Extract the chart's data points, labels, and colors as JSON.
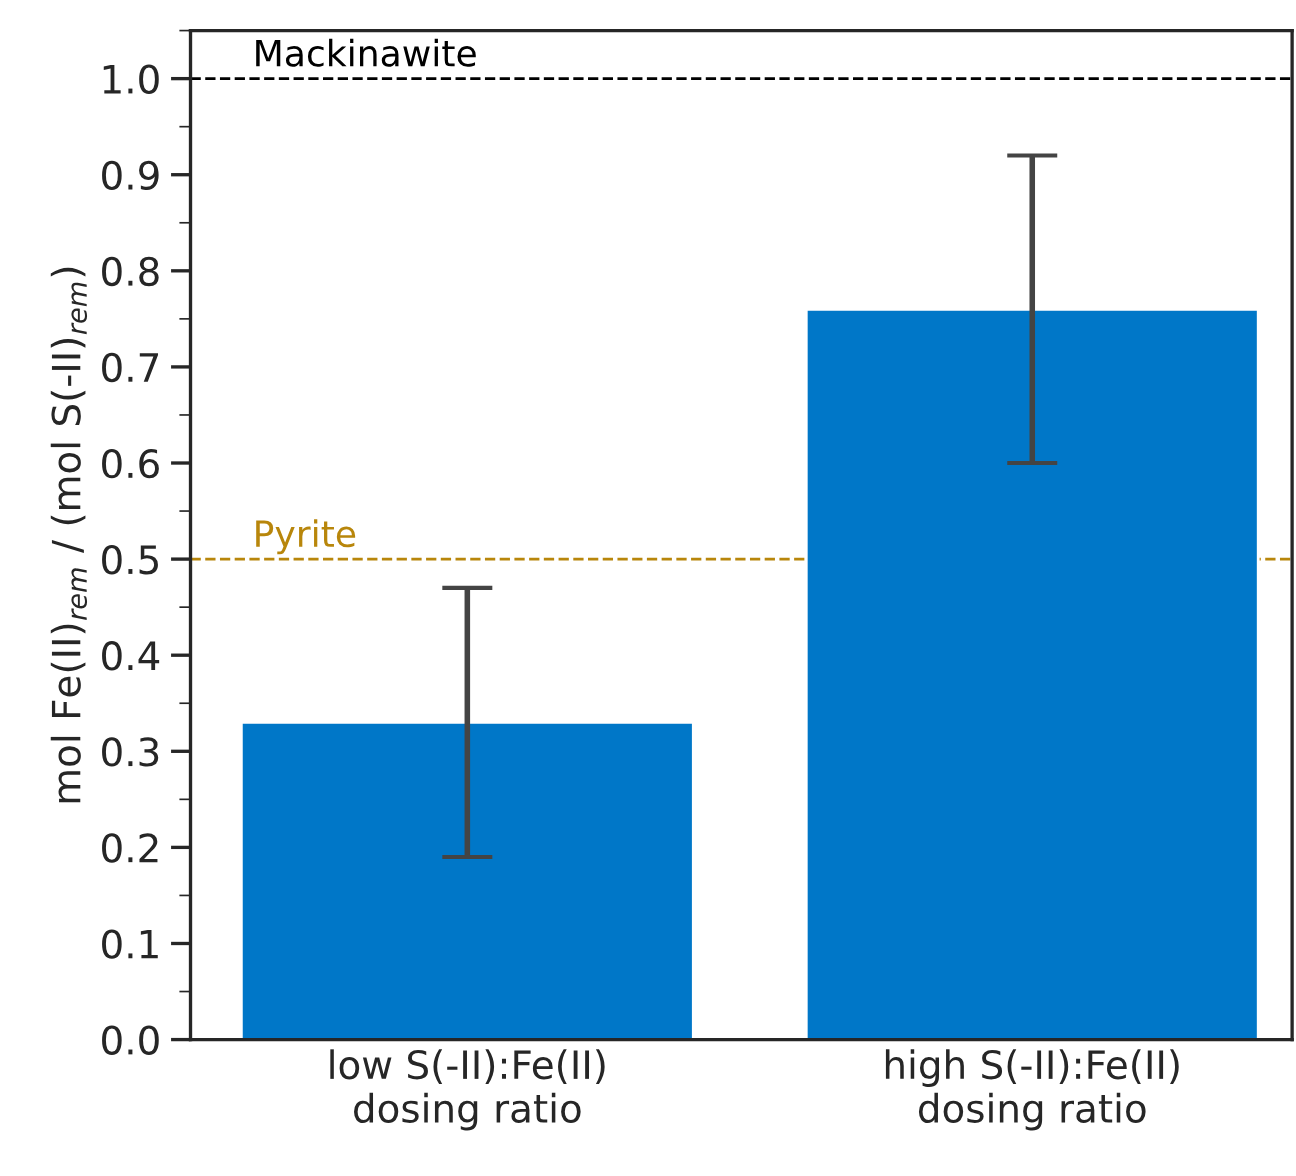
{
  "chart_data": {
    "type": "bar",
    "ylabel": "mol Fe(II)$_{rem}$ / (mol S(-II)$_{rem}$)",
    "categories": [
      "low S(-II):Fe(II)\ndosing ratio",
      "high S(-II):Fe(II)\ndosing ratio"
    ],
    "values": [
      0.33,
      0.76
    ],
    "color": "#0077c8",
    "errors": [
      0.14,
      0.16
    ],
    "ylim": [
      0,
      1.05
    ],
    "yticks": [
      {
        "value": 0,
        "label": "0.0"
      },
      {
        "value": 0.1,
        "label": "0.1"
      },
      {
        "value": 0.2,
        "label": "0.2"
      },
      {
        "value": 0.3,
        "label": "0.3"
      },
      {
        "value": 0.4,
        "label": "0.4"
      },
      {
        "value": 0.5,
        "label": "0.5"
      },
      {
        "value": 0.6,
        "label": "0.6"
      },
      {
        "value": 0.7,
        "label": "0.7"
      },
      {
        "value": 0.8,
        "label": "0.8"
      },
      {
        "value": 0.9,
        "label": "0.9"
      },
      {
        "value": 1.0,
        "label": "1.0"
      }
    ],
    "ref_lines": [
      {
        "axis": "y",
        "value": 1.0,
        "label": "Mackinawite",
        "color": "#000000",
        "line_style": "dashed"
      },
      {
        "axis": "y",
        "value": 0.5,
        "label": "Pyrite",
        "color": "#b8860b",
        "line_style": "dashed"
      }
    ],
    "grid": false,
    "legend": false
  }
}
